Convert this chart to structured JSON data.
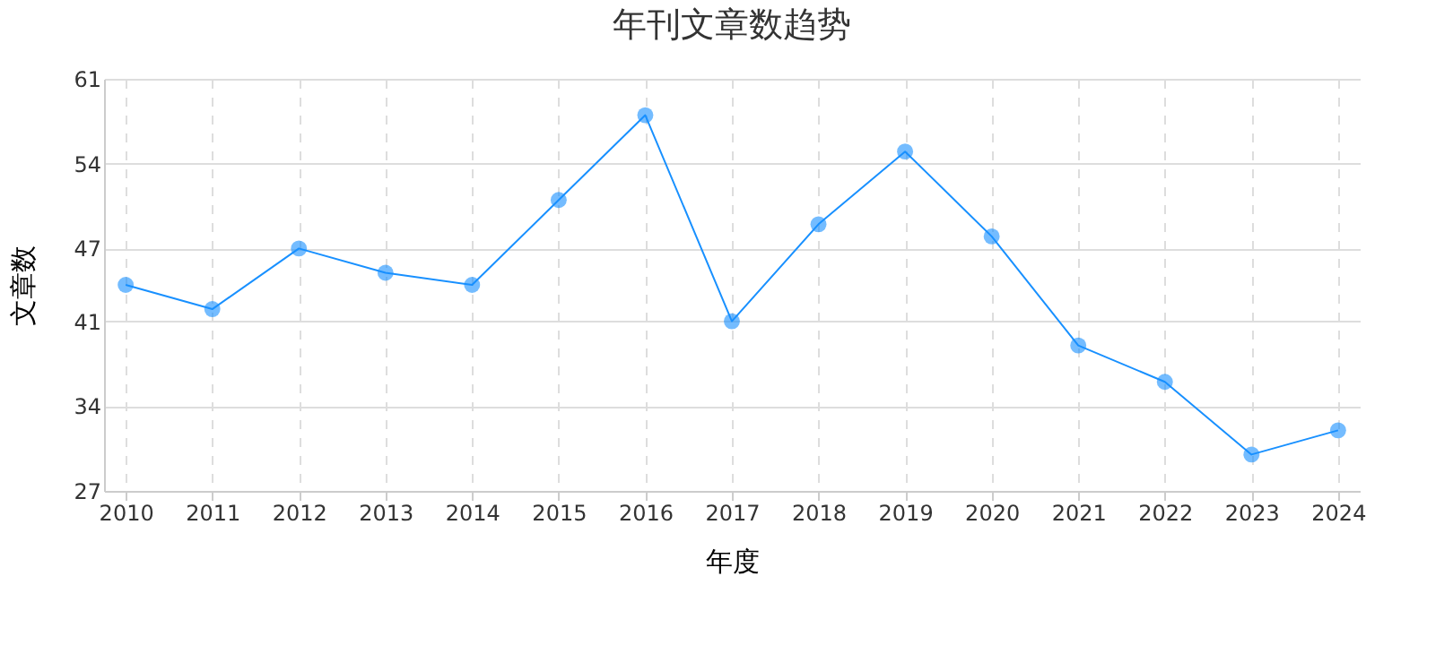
{
  "chart_data": {
    "type": "line",
    "title": "年刊文章数趋势",
    "xlabel": "年度",
    "ylabel": "文章数",
    "categories": [
      "2010",
      "2011",
      "2012",
      "2013",
      "2014",
      "2015",
      "2016",
      "2017",
      "2018",
      "2019",
      "2020",
      "2021",
      "2022",
      "2023",
      "2024"
    ],
    "series": [
      {
        "color": "#1890ff",
        "values": [
          44,
          42,
          47,
          45,
          44,
          51,
          58,
          41,
          49,
          55,
          48,
          39,
          36,
          30,
          32
        ]
      }
    ],
    "ylim": [
      27,
      61
    ],
    "yticks": [
      27,
      34,
      41,
      47,
      54,
      61
    ],
    "grid": true,
    "legend": false,
    "marker": "circle",
    "line_style": "solid"
  }
}
